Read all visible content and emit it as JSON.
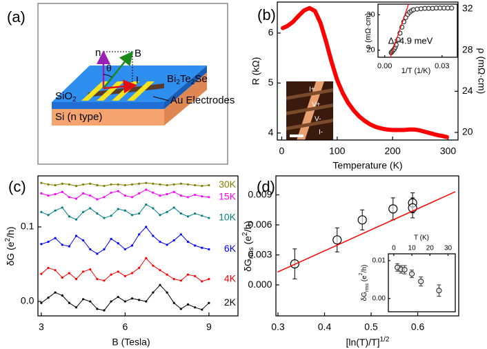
{
  "diagram": {
    "panel_label": "(a)",
    "labels": {
      "normal": "n",
      "field": "B",
      "angle": "θ",
      "current": "I",
      "material": {
        "a": "Bi",
        "sub1": "2",
        "b": "Te",
        "sub2": "2",
        "c": "Se"
      },
      "oxide": {
        "a": "SiO",
        "sub": "2"
      },
      "electrodes": "Au Electrodes",
      "substrate": "Si (n type)"
    }
  },
  "chart_data": [
    {
      "type": "line",
      "panel_label": "(b)",
      "xlabel": "Temperature (K)",
      "ylabel": "R (kΩ)",
      "y2label": "ρ (mΩ·cm)",
      "x": [
        2,
        10,
        20,
        30,
        40,
        50,
        60,
        70,
        80,
        90,
        100,
        110,
        120,
        130,
        140,
        150,
        160,
        170,
        180,
        190,
        200,
        210,
        220,
        230,
        240,
        250,
        260,
        270,
        280,
        290,
        298
      ],
      "series": [
        {
          "color": "#ff0000",
          "values": [
            6.1,
            6.14,
            6.22,
            6.34,
            6.45,
            6.5,
            6.44,
            6.2,
            5.83,
            5.42,
            5.06,
            4.8,
            4.6,
            4.45,
            4.33,
            4.24,
            4.17,
            4.12,
            4.09,
            4.07,
            4.06,
            4.06,
            4.06,
            4.07,
            4.07,
            4.05,
            4.02,
            3.99,
            3.96,
            3.94,
            3.92
          ]
        }
      ],
      "xlim": [
        -8,
        318
      ],
      "xticks": [
        0,
        100,
        200,
        300
      ],
      "ylim": [
        3.86,
        6.62
      ],
      "yticks": [
        4,
        5,
        6
      ],
      "y2lim": [
        19.26,
        32.67
      ],
      "y2ticks": [
        20,
        24,
        28,
        32
      ],
      "inset_labels": [
        "I+",
        "V+",
        "V-",
        "I-"
      ]
    },
    {
      "type": "scatter",
      "xlabel": "1/T (1/K)",
      "ylabel": "ρ (mΩ·cm)",
      "annotation": "Δ=4.9 meV",
      "series": [
        {
          "color": "#333333",
          "style": "open-circle",
          "x": [
            0.0034,
            0.0036,
            0.004,
            0.0045,
            0.005,
            0.0055,
            0.006,
            0.007,
            0.008,
            0.009,
            0.01,
            0.011,
            0.012,
            0.013,
            0.014,
            0.015,
            0.017,
            0.019,
            0.021,
            0.023,
            0.025,
            0.027,
            0.029,
            0.031,
            0.033,
            0.035
          ],
          "values": [
            19.3,
            19.4,
            19.7,
            20,
            20.3,
            20.8,
            21.5,
            23,
            24.8,
            26.5,
            28,
            29.2,
            30.1,
            30.7,
            31.1,
            31.4,
            31.6,
            31.7,
            31.8,
            31.8,
            31.8,
            31.9,
            31.9,
            31.9,
            31.9,
            31.9
          ]
        },
        {
          "color": "#ff0000",
          "style": "line",
          "x": [
            0.003,
            0.0125
          ],
          "values": [
            18,
            33
          ]
        }
      ],
      "xlim": [
        -0.0035,
        0.038
      ],
      "xticks": [
        {
          "value": 0,
          "label": "0.00"
        },
        0.03
      ],
      "ylim": [
        18,
        33
      ],
      "yticks": [
        20,
        30
      ]
    },
    {
      "type": "line",
      "panel_label": "(c)",
      "xlabel": "B (Tesla)",
      "ylabel": {
        "a": "δG (e",
        "sup": "2",
        "b": "/h)"
      },
      "x": [
        3,
        3.25,
        3.5,
        3.75,
        4,
        4.25,
        4.5,
        4.75,
        5,
        5.25,
        5.5,
        5.75,
        6,
        6.25,
        6.5,
        6.75,
        7,
        7.25,
        7.5,
        7.75,
        8,
        8.25,
        8.5,
        8.75,
        9
      ],
      "series": [
        {
          "name": "2K",
          "color": "#000000",
          "style": "line+dots",
          "values": [
            -0.002,
            0.005,
            0.012,
            0.008,
            -0.002,
            -0.008,
            0.003,
            0,
            -0.01,
            -0.012,
            0,
            0.006,
            0,
            0.004,
            0.002,
            0,
            0.012,
            0.022,
            0.012,
            -0.002,
            -0.01,
            -0.004,
            -0.008,
            -0.011,
            -0.002
          ]
        },
        {
          "name": "4K",
          "color": "#ff0000",
          "style": "line+dots",
          "values": [
            0.037,
            0.045,
            0.042,
            0.032,
            0.038,
            0.03,
            0.04,
            0.043,
            0.03,
            0.028,
            0.036,
            0.04,
            0.034,
            0.038,
            0.045,
            0.058,
            0.048,
            0.042,
            0.036,
            0.03,
            0.028,
            0.036,
            0.034,
            0.027,
            0.03
          ]
        },
        {
          "name": "6K",
          "color": "#0000ff",
          "style": "line+dots",
          "values": [
            0.077,
            0.08,
            0.085,
            0.076,
            0.074,
            0.088,
            0.082,
            0.07,
            0.064,
            0.07,
            0.084,
            0.078,
            0.07,
            0.075,
            0.09,
            0.1,
            0.088,
            0.08,
            0.076,
            0.082,
            0.09,
            0.08,
            0.075,
            0.072,
            0.07
          ]
        },
        {
          "name": "10K",
          "color": "#008080",
          "style": "line+dots",
          "values": [
            0.12,
            0.116,
            0.122,
            0.126,
            0.114,
            0.11,
            0.12,
            0.125,
            0.118,
            0.112,
            0.115,
            0.124,
            0.122,
            0.116,
            0.118,
            0.13,
            0.125,
            0.116,
            0.12,
            0.126,
            0.118,
            0.114,
            0.118,
            0.115,
            0.112
          ]
        },
        {
          "name": "15K",
          "color": "#ff00ff",
          "style": "line+dots",
          "values": [
            0.145,
            0.142,
            0.144,
            0.147,
            0.14,
            0.138,
            0.145,
            0.142,
            0.137,
            0.14,
            0.146,
            0.148,
            0.142,
            0.14,
            0.145,
            0.15,
            0.146,
            0.142,
            0.144,
            0.147,
            0.142,
            0.14,
            0.143,
            0.141,
            0.14
          ]
        },
        {
          "name": "30K",
          "color": "#808000",
          "style": "line+dots",
          "values": [
            0.159,
            0.157,
            0.156,
            0.158,
            0.157,
            0.155,
            0.157,
            0.158,
            0.156,
            0.155,
            0.157,
            0.157,
            0.156,
            0.157,
            0.158,
            0.159,
            0.158,
            0.157,
            0.156,
            0.157,
            0.158,
            0.157,
            0.156,
            0.155,
            0.156
          ]
        }
      ],
      "xlim": [
        2.88,
        10.04
      ],
      "xticks": [
        3,
        6,
        9
      ],
      "ylim": [
        -0.0194,
        0.1685
      ],
      "yticks": [
        {
          "value": 0,
          "label": "0.0"
        },
        0.1
      ]
    },
    {
      "type": "scatter",
      "panel_label": "(d)",
      "xlabel": {
        "a": "[ln(T)/T]",
        "sup": "1/2"
      },
      "ylabel": {
        "a": "δG",
        "sub": "rms",
        "b": " (e",
        "sup": "2",
        "c": "/h)"
      },
      "series": [
        {
          "color": "#000000",
          "style": "open-circle",
          "x": [
            0.336,
            0.427,
            0.481,
            0.547,
            0.589,
            0.589
          ],
          "values": [
            0.0021,
            0.0045,
            0.0065,
            0.0076,
            0.0082,
            0.0077
          ],
          "errors": [
            0.0015,
            0.0012,
            0.001,
            0.0011,
            0.001,
            0.001
          ]
        },
        {
          "color": "#ff0000",
          "style": "line",
          "x": [
            0.3,
            0.68
          ],
          "values": [
            0.0013,
            0.0093
          ]
        }
      ],
      "xlim": [
        0.2956,
        0.688
      ],
      "xticks": [
        0.3,
        0.4,
        0.5,
        0.6
      ],
      "ylim": [
        -0.0031,
        0.0109
      ],
      "yticks": [
        {
          "value": 0,
          "label": "0.000"
        },
        0.003,
        0.006,
        0.009
      ]
    },
    {
      "type": "scatter",
      "xlabel": "T (K)",
      "xaxis": "top",
      "ylabel": {
        "a": "δG",
        "sub": "rms",
        "b": " (e",
        "sup": "2",
        "c": "/h)"
      },
      "series": [
        {
          "color": "#333333",
          "style": "open-circle",
          "x": [
            2,
            4,
            6,
            10,
            15,
            25
          ],
          "values": [
            0.0082,
            0.0077,
            0.0076,
            0.0065,
            0.0045,
            0.0021
          ],
          "errors": [
            0.001,
            0.001,
            0.0011,
            0.001,
            0.0012,
            0.0015
          ]
        }
      ],
      "xlim": [
        -3,
        34
      ],
      "xticks": [
        0,
        10,
        20,
        30
      ],
      "ylim": [
        -0.0035,
        0.0118
      ],
      "yticks": [
        {
          "value": 0,
          "label": "0.00"
        },
        0.01
      ]
    }
  ]
}
